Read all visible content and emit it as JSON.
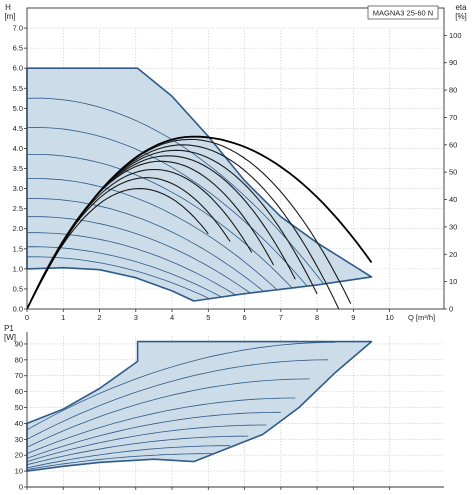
{
  "chart_data": [
    {
      "type": "line",
      "name": "head",
      "title": "MAGNA3 25-60 N",
      "ylabel_top": "H",
      "ylabel_unit": "[m]",
      "y2label_top": "eta",
      "y2label_unit": "[%]",
      "xlabel": "Q [m³/h]",
      "xlim": [
        0,
        11.5
      ],
      "ylim": [
        0,
        7.5
      ],
      "y2lim": [
        0,
        110
      ],
      "xticks": [
        0,
        1,
        2,
        3,
        4,
        5,
        6,
        7,
        8,
        9,
        10
      ],
      "yticks": [
        "0.0",
        "0.5",
        "1.0",
        "1.5",
        "2.0",
        "2.5",
        "3.0",
        "3.5",
        "4.0",
        "4.5",
        "5.0",
        "5.5",
        "6.0",
        "6.5",
        "7.0"
      ],
      "y2ticks": [
        0,
        10,
        20,
        30,
        40,
        50,
        60,
        70,
        80,
        90,
        100
      ],
      "envelope": {
        "max_curve": [
          [
            0,
            6.0
          ],
          [
            3.05,
            6.0
          ],
          [
            4.0,
            5.3
          ],
          [
            5.0,
            4.3
          ],
          [
            6.0,
            3.2
          ],
          [
            7.0,
            2.3
          ],
          [
            8.0,
            1.65
          ],
          [
            9.5,
            0.8
          ]
        ],
        "min_curve": [
          [
            9.5,
            0.8
          ],
          [
            8.0,
            0.6
          ],
          [
            6.0,
            0.38
          ],
          [
            4.6,
            0.2
          ]
        ],
        "left_edge": [
          [
            4.6,
            0.2
          ],
          [
            4.0,
            0.45
          ],
          [
            3.0,
            0.78
          ],
          [
            2.0,
            0.98
          ],
          [
            1.0,
            1.03
          ],
          [
            0,
            1.0
          ]
        ]
      },
      "head_curves": [
        {
          "h0": 5.25,
          "qmax": 8.7
        },
        {
          "h0": 4.52,
          "qmax": 8.25
        },
        {
          "h0": 3.85,
          "qmax": 7.85
        },
        {
          "h0": 3.25,
          "qmax": 7.45
        },
        {
          "h0": 2.75,
          "qmax": 7.1
        },
        {
          "h0": 2.3,
          "qmax": 6.75
        },
        {
          "h0": 1.9,
          "qmax": 6.35
        },
        {
          "h0": 1.55,
          "qmax": 5.95
        },
        {
          "h0": 1.3,
          "qmax": 5.6
        }
      ],
      "efficiency_curves": [
        {
          "peak_q": 4.5,
          "peak_eta": 62,
          "q_end": 9.3
        },
        {
          "peak_q": 4.3,
          "peak_eta": 60,
          "q_end": 8.6
        },
        {
          "peak_q": 4.1,
          "peak_eta": 58,
          "q_end": 8.0
        },
        {
          "peak_q": 3.9,
          "peak_eta": 56,
          "q_end": 7.4
        },
        {
          "peak_q": 3.7,
          "peak_eta": 54,
          "q_end": 6.8
        },
        {
          "peak_q": 3.5,
          "peak_eta": 51,
          "q_end": 6.2
        },
        {
          "peak_q": 3.3,
          "peak_eta": 48,
          "q_end": 5.6
        },
        {
          "peak_q": 3.1,
          "peak_eta": 44,
          "q_end": 5.0
        }
      ],
      "efficiency_max": {
        "peak_q": 4.6,
        "peak_eta": 63,
        "q_end": 9.5,
        "eta_end": 17
      }
    },
    {
      "type": "line",
      "name": "power",
      "ylabel_top": "P1",
      "ylabel_unit": "[W]",
      "xlim": [
        0,
        11.5
      ],
      "ylim": [
        0,
        95
      ],
      "yticks": [
        0,
        10,
        20,
        30,
        40,
        50,
        60,
        70,
        80,
        90
      ],
      "envelope": {
        "max_curve": [
          [
            0,
            40
          ],
          [
            1.0,
            49
          ],
          [
            2.0,
            62
          ],
          [
            3.05,
            79
          ],
          [
            3.05,
            91.5
          ],
          [
            9.5,
            91.5
          ]
        ],
        "min_curve": [
          [
            9.5,
            91.5
          ],
          [
            8.5,
            72
          ],
          [
            7.5,
            50
          ],
          [
            6.5,
            33
          ],
          [
            4.6,
            16
          ]
        ],
        "left_edge": [
          [
            4.6,
            16
          ],
          [
            3.5,
            17.5
          ],
          [
            2.0,
            15.5
          ],
          [
            1.0,
            13
          ],
          [
            0,
            10
          ]
        ]
      },
      "power_curves": [
        {
          "p0": 36,
          "peak": 91,
          "q_end": 8.5
        },
        {
          "p0": 30,
          "peak": 80,
          "q_end": 8.3
        },
        {
          "p0": 25,
          "peak": 68,
          "q_end": 7.8
        },
        {
          "p0": 21,
          "peak": 56,
          "q_end": 7.4
        },
        {
          "p0": 18,
          "peak": 47,
          "q_end": 7.0
        },
        {
          "p0": 16,
          "peak": 39,
          "q_end": 6.6
        },
        {
          "p0": 14,
          "peak": 32,
          "q_end": 6.1
        },
        {
          "p0": 12,
          "peak": 26,
          "q_end": 5.6
        },
        {
          "p0": 11,
          "peak": 21,
          "q_end": 5.1
        }
      ]
    }
  ]
}
